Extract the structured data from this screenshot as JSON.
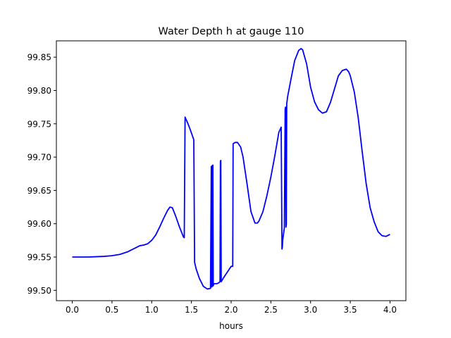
{
  "chart_data": {
    "type": "line",
    "title": "Water Depth h at gauge 110",
    "xlabel": "hours",
    "ylabel": "",
    "xlim": [
      -0.2,
      4.2
    ],
    "ylim": [
      99.4845,
      99.8745
    ],
    "xticks": [
      {
        "value": 0.0,
        "label": "0.0"
      },
      {
        "value": 0.5,
        "label": "0.5"
      },
      {
        "value": 1.0,
        "label": "1.0"
      },
      {
        "value": 1.5,
        "label": "1.5"
      },
      {
        "value": 2.0,
        "label": "2.0"
      },
      {
        "value": 2.5,
        "label": "2.5"
      },
      {
        "value": 3.0,
        "label": "3.0"
      },
      {
        "value": 3.5,
        "label": "3.5"
      },
      {
        "value": 4.0,
        "label": "4.0"
      }
    ],
    "yticks": [
      {
        "value": 99.5,
        "label": "99.50"
      },
      {
        "value": 99.55,
        "label": "99.55"
      },
      {
        "value": 99.6,
        "label": "99.60"
      },
      {
        "value": 99.65,
        "label": "99.65"
      },
      {
        "value": 99.7,
        "label": "99.70"
      },
      {
        "value": 99.75,
        "label": "99.75"
      },
      {
        "value": 99.8,
        "label": "99.80"
      },
      {
        "value": 99.85,
        "label": "99.85"
      }
    ],
    "grid": false,
    "series": [
      {
        "color": "#0000ff",
        "x": [
          0.0,
          0.2,
          0.4,
          0.5,
          0.6,
          0.7,
          0.8,
          0.85,
          0.9,
          0.95,
          1.0,
          1.05,
          1.1,
          1.15,
          1.2,
          1.23,
          1.26,
          1.3,
          1.35,
          1.4,
          1.41,
          1.42,
          1.45,
          1.48,
          1.53,
          1.54,
          1.56,
          1.6,
          1.65,
          1.7,
          1.74,
          1.75,
          1.755,
          1.76,
          1.765,
          1.77,
          1.775,
          1.78,
          1.79,
          1.8,
          1.82,
          1.84,
          1.86,
          1.865,
          1.87,
          1.875,
          1.9,
          1.95,
          2.0,
          2.02,
          2.025,
          2.05,
          2.08,
          2.12,
          2.15,
          2.2,
          2.25,
          2.3,
          2.33,
          2.35,
          2.4,
          2.45,
          2.5,
          2.55,
          2.6,
          2.63,
          2.64,
          2.645,
          2.65,
          2.67,
          2.68,
          2.685,
          2.69,
          2.695,
          2.7,
          2.705,
          2.71,
          2.75,
          2.8,
          2.85,
          2.88,
          2.9,
          2.95,
          3.0,
          3.05,
          3.1,
          3.15,
          3.2,
          3.25,
          3.3,
          3.35,
          3.4,
          3.45,
          3.48,
          3.5,
          3.55,
          3.6,
          3.65,
          3.7,
          3.75,
          3.8,
          3.85,
          3.9,
          3.95,
          4.0
        ],
        "y": [
          99.55,
          99.55,
          99.551,
          99.552,
          99.554,
          99.558,
          99.564,
          99.567,
          99.568,
          99.57,
          99.575,
          99.583,
          99.595,
          99.608,
          99.62,
          99.625,
          99.624,
          99.612,
          99.595,
          99.58,
          99.579,
          99.76,
          99.752,
          99.743,
          99.726,
          99.542,
          99.532,
          99.518,
          99.506,
          99.502,
          99.503,
          99.686,
          99.505,
          99.687,
          99.506,
          99.688,
          99.507,
          99.509,
          99.51,
          99.51,
          99.51,
          99.511,
          99.513,
          99.694,
          99.695,
          99.513,
          99.518,
          99.527,
          99.536,
          99.536,
          99.72,
          99.722,
          99.722,
          99.715,
          99.7,
          99.66,
          99.618,
          99.601,
          99.601,
          99.604,
          99.618,
          99.642,
          99.67,
          99.702,
          99.737,
          99.745,
          99.562,
          99.565,
          99.576,
          99.594,
          99.772,
          99.775,
          99.595,
          99.599,
          99.78,
          99.785,
          99.79,
          99.815,
          99.845,
          99.86,
          99.863,
          99.861,
          99.84,
          99.805,
          99.783,
          99.771,
          99.766,
          99.768,
          99.782,
          99.802,
          99.822,
          99.83,
          99.832,
          99.828,
          99.822,
          99.798,
          99.759,
          99.708,
          99.66,
          99.624,
          99.603,
          99.588,
          99.582,
          99.581,
          99.584
        ]
      }
    ]
  }
}
